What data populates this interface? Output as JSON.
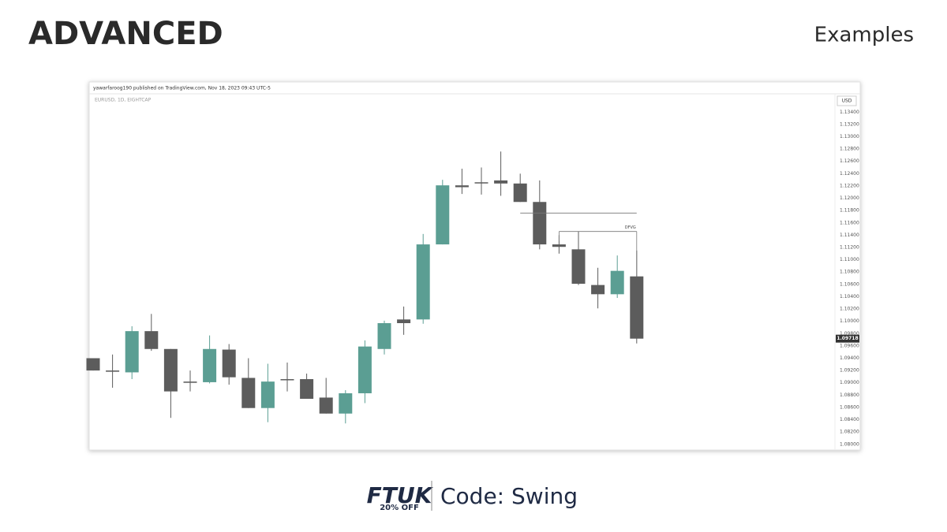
{
  "header": {
    "title": "ADVANCED",
    "section": "Examples"
  },
  "footer": {
    "brand": "FTUK",
    "offer": "20% OFF",
    "code": "Code: Swing"
  },
  "chart_data": {
    "type": "candlestick",
    "source": "yawarfaroog190 published on TradingView.com, Nov 18, 2023 09:43 UTC-5",
    "symbol": "EURUSD, 1D, EIGHTCAP",
    "currency": "USD",
    "up_color": "#5b9e93",
    "down_color": "#5c5c5c",
    "open": [
      1.094,
      1.092,
      1.0917,
      1.0984,
      1.0955,
      1.0902,
      1.0901,
      1.0954,
      1.0908,
      1.0859,
      1.0906,
      1.0906,
      1.0876,
      1.085,
      1.0883,
      1.0955,
      1.1003,
      1.1003,
      1.1125,
      1.1221,
      1.1226,
      1.1229,
      1.1224,
      1.1194,
      1.1125,
      1.1117,
      1.1059,
      1.1044,
      1.1073
    ],
    "high": [
      1.094,
      1.0946,
      1.0992,
      1.1012,
      1.0955,
      1.092,
      1.0977,
      1.0963,
      1.094,
      1.0931,
      1.0933,
      1.0915,
      1.0908,
      1.0888,
      1.0969,
      1.1001,
      1.1024,
      1.1142,
      1.123,
      1.1248,
      1.125,
      1.1276,
      1.124,
      1.1229,
      1.114,
      1.1146,
      1.1087,
      1.1107,
      1.1115
    ],
    "low": [
      1.092,
      1.0892,
      1.0906,
      1.0952,
      1.0843,
      1.0886,
      1.0899,
      1.0897,
      1.0859,
      1.0836,
      1.0886,
      1.0874,
      1.085,
      1.0834,
      1.0867,
      1.0946,
      1.0978,
      1.0996,
      1.1125,
      1.1207,
      1.1206,
      1.1204,
      1.1194,
      1.1117,
      1.111,
      1.1059,
      1.1021,
      1.1038,
      1.0964
    ],
    "close": [
      1.092,
      1.0918,
      1.0984,
      1.0955,
      1.0886,
      1.09,
      1.0955,
      1.0909,
      1.0859,
      1.0902,
      1.0905,
      1.0874,
      1.085,
      1.0883,
      1.0959,
      1.0997,
      1.0997,
      1.1125,
      1.1221,
      1.1218,
      1.1225,
      1.1224,
      1.1194,
      1.1125,
      1.1121,
      1.1061,
      1.1044,
      1.1082,
      1.09718
    ],
    "price_label": {
      "value": 1.09718,
      "label": "1.09718"
    },
    "hlines": [
      1.1176
    ],
    "annotations": [
      {
        "text": "DFVG",
        "value": 1.1146
      }
    ],
    "ylim": [
      1.0792,
      1.1366
    ],
    "yticks": [
      {
        "value": 1.134,
        "label": "1.13400"
      },
      {
        "value": 1.132,
        "label": "1.13200"
      },
      {
        "value": 1.13,
        "label": "1.13000"
      },
      {
        "value": 1.128,
        "label": "1.12800"
      },
      {
        "value": 1.126,
        "label": "1.12600"
      },
      {
        "value": 1.124,
        "label": "1.12400"
      },
      {
        "value": 1.122,
        "label": "1.12200"
      },
      {
        "value": 1.12,
        "label": "1.12000"
      },
      {
        "value": 1.118,
        "label": "1.11800"
      },
      {
        "value": 1.116,
        "label": "1.11600"
      },
      {
        "value": 1.114,
        "label": "1.11400"
      },
      {
        "value": 1.112,
        "label": "1.11200"
      },
      {
        "value": 1.11,
        "label": "1.11000"
      },
      {
        "value": 1.108,
        "label": "1.10800"
      },
      {
        "value": 1.106,
        "label": "1.10600"
      },
      {
        "value": 1.104,
        "label": "1.10400"
      },
      {
        "value": 1.102,
        "label": "1.10200"
      },
      {
        "value": 1.1,
        "label": "1.10000"
      },
      {
        "value": 1.098,
        "label": "1.09800"
      },
      {
        "value": 1.096,
        "label": "1.09600"
      },
      {
        "value": 1.094,
        "label": "1.09400"
      },
      {
        "value": 1.092,
        "label": "1.09200"
      },
      {
        "value": 1.09,
        "label": "1.09000"
      },
      {
        "value": 1.088,
        "label": "1.08800"
      },
      {
        "value": 1.086,
        "label": "1.08600"
      },
      {
        "value": 1.084,
        "label": "1.08400"
      },
      {
        "value": 1.082,
        "label": "1.08200"
      },
      {
        "value": 1.08,
        "label": "1.08000"
      }
    ]
  }
}
